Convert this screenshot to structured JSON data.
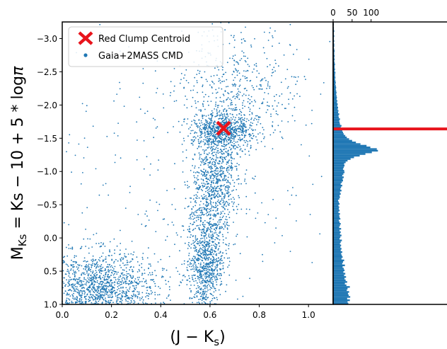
{
  "chart_data": [
    {
      "type": "scatter",
      "xlabel": "(J − K",
      "xlabel_sub": "s",
      "ylabel_parts": {
        "m": "M",
        "m_sub": "Ks",
        "mid": " = Ks − 10 + 5 * log",
        "pi": "π"
      },
      "xlim": [
        0.0,
        1.1
      ],
      "ylim": [
        1.0,
        -3.25
      ],
      "y_inverted": true,
      "x_ticks": [
        "0.0",
        "0.2",
        "0.4",
        "0.6",
        "0.8",
        "1.0"
      ],
      "y_ticks": [
        "−3.0",
        "−2.5",
        "−2.0",
        "−1.5",
        "−1.0",
        "−0.5",
        "0.0",
        "0.5",
        "1.0"
      ],
      "series": [
        {
          "name": "Gaia+2MASS CMD",
          "marker": "dot",
          "color": "#1f77b4",
          "density_model": [
            {
              "x": 0.15,
              "y": 0.75,
              "sx": 0.12,
              "sy": 0.28,
              "n": 1500
            },
            {
              "x": 0.58,
              "y": 0.45,
              "sx": 0.035,
              "sy": 0.35,
              "n": 700
            },
            {
              "x": 0.6,
              "y": -0.4,
              "sx": 0.045,
              "sy": 0.4,
              "n": 500
            },
            {
              "x": 0.63,
              "y": -1.1,
              "sx": 0.05,
              "sy": 0.35,
              "n": 500
            },
            {
              "x": 0.66,
              "y": -1.63,
              "sx": 0.06,
              "sy": 0.13,
              "n": 650
            },
            {
              "x": 0.7,
              "y": -2.3,
              "sx": 0.12,
              "sy": 0.45,
              "n": 450
            },
            {
              "x": 0.55,
              "y": -1.0,
              "sx": 0.3,
              "sy": 1.2,
              "n": 350
            }
          ]
        },
        {
          "name": "Red Clump Centroid",
          "marker": "x",
          "color": "#e8141c",
          "points": [
            {
              "x": 0.655,
              "y": -1.65
            }
          ]
        }
      ],
      "legend": {
        "placement": "top-left",
        "entries": [
          "Red Clump Centroid",
          "Gaia+2MASS CMD"
        ]
      }
    },
    {
      "type": "bar",
      "orientation": "horizontal",
      "xlim": [
        0,
        300
      ],
      "x_ticks": [
        "0",
        "50",
        "100"
      ],
      "ylim": [
        1.0,
        -3.25
      ],
      "color": "#1f77b4",
      "bin_edges_start": 1.0,
      "bin_width": 0.025,
      "values": [
        40,
        38,
        44,
        37,
        45,
        41,
        39,
        42,
        36,
        38,
        44,
        35,
        31,
        37,
        33,
        30,
        34,
        29,
        32,
        27,
        30,
        28,
        25,
        31,
        24,
        26,
        29,
        22,
        25,
        23,
        21,
        24,
        20,
        22,
        19,
        21,
        18,
        20,
        23,
        17,
        19,
        22,
        18,
        20,
        17,
        21,
        16,
        18,
        20,
        17,
        15,
        19,
        17,
        16,
        18,
        14,
        17,
        15,
        16,
        14,
        17,
        15,
        13,
        16,
        18,
        17,
        20,
        18,
        22,
        19,
        21,
        24,
        20,
        23,
        26,
        25,
        28,
        24,
        27,
        30,
        29,
        26,
        28,
        30,
        29,
        33,
        38,
        46,
        55,
        70,
        85,
        102,
        118,
        115,
        98,
        88,
        72,
        60,
        50,
        42,
        36,
        32,
        28,
        26,
        24,
        22,
        20,
        22,
        18,
        17,
        16,
        18,
        15,
        14,
        16,
        13,
        14,
        12,
        13,
        11,
        12,
        10,
        11,
        9,
        10,
        9,
        8,
        9,
        8,
        7,
        8,
        7,
        6,
        7,
        6,
        5,
        6,
        5,
        5,
        6,
        4,
        5,
        4,
        4,
        5,
        4,
        3,
        4,
        3,
        4,
        3,
        3,
        4,
        3,
        2,
        3,
        3,
        2,
        3,
        2,
        2,
        3,
        2,
        2,
        3,
        2,
        2,
        1,
        2
      ],
      "reference_line": {
        "y": -1.64,
        "color": "#e8141c"
      }
    }
  ],
  "colors": {
    "points": "#1f77b4",
    "marker": "#e8141c"
  }
}
